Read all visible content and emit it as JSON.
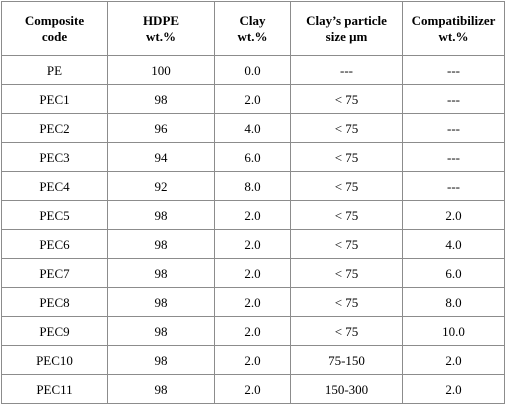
{
  "table": {
    "headers": [
      [
        "Composite",
        "code"
      ],
      [
        "HDPE",
        "wt.%"
      ],
      [
        "Clay",
        "wt.%"
      ],
      [
        "Clay’s particle",
        "size μm"
      ],
      [
        "Compatibilizer",
        "wt.%"
      ]
    ],
    "rows": [
      [
        "PE",
        "100",
        "0.0",
        "---",
        "---"
      ],
      [
        "PEC1",
        "98",
        "2.0",
        "< 75",
        "---"
      ],
      [
        "PEC2",
        "96",
        "4.0",
        "< 75",
        "---"
      ],
      [
        "PEC3",
        "94",
        "6.0",
        "< 75",
        "---"
      ],
      [
        "PEC4",
        "92",
        "8.0",
        "< 75",
        "---"
      ],
      [
        "PEC5",
        "98",
        "2.0",
        "< 75",
        "2.0"
      ],
      [
        "PEC6",
        "98",
        "2.0",
        "< 75",
        "4.0"
      ],
      [
        "PEC7",
        "98",
        "2.0",
        "< 75",
        "6.0"
      ],
      [
        "PEC8",
        "98",
        "2.0",
        "< 75",
        "8.0"
      ],
      [
        "PEC9",
        "98",
        "2.0",
        "< 75",
        "10.0"
      ],
      [
        "PEC10",
        "98",
        "2.0",
        "75-150",
        "2.0"
      ],
      [
        "PEC11",
        "98",
        "2.0",
        "150-300",
        "2.0"
      ]
    ]
  }
}
